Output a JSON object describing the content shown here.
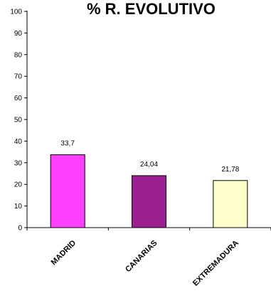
{
  "chart_data": {
    "type": "bar",
    "title": "% R. EVOLUTIVO",
    "xlabel": "",
    "ylabel": "",
    "categories": [
      "MADRID",
      "CANARIAS",
      "EXTREMADURA"
    ],
    "values": [
      33.7,
      24.04,
      21.78
    ],
    "value_labels": [
      "33,7",
      "24,04",
      "21,78"
    ],
    "bar_colors": [
      "#ff40ff",
      "#9b1f8f",
      "#ffffcc"
    ],
    "ylim": [
      0,
      100
    ],
    "yticks": [
      0,
      10,
      20,
      30,
      40,
      50,
      60,
      70,
      80,
      90,
      100
    ],
    "grid": false,
    "legend": "none"
  }
}
